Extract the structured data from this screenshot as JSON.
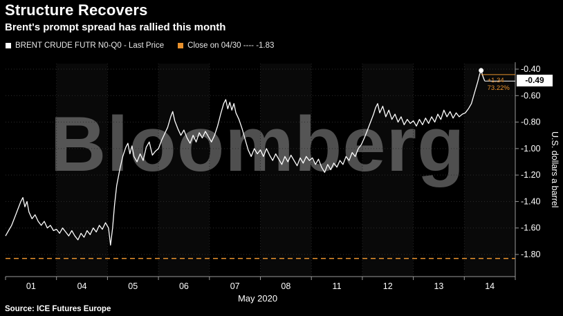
{
  "header": {
    "title": "Structure Recovers",
    "subtitle": "Brent's prompt spread has rallied this month"
  },
  "legend": [
    {
      "label": "BRENT CRUDE FUTR N0-Q0 - Last Price",
      "color": "#ffffff"
    },
    {
      "label": "Close on 04/30 ---- -1.83",
      "color": "#e8912d"
    }
  ],
  "watermark": "Bloomberg",
  "source": "Source: ICE Futures Europe",
  "chart_data": {
    "type": "line",
    "title": "Structure Recovers",
    "subtitle": "Brent's prompt spread has rallied this month",
    "xlabel": "May 2020",
    "ylabel": "U.S. dollars a barrel",
    "x_tick_labels": [
      "01",
      "04",
      "05",
      "06",
      "07",
      "08",
      "11",
      "12",
      "13",
      "14"
    ],
    "y_tick_labels": [
      "-0.40",
      "-0.60",
      "-0.80",
      "-1.00",
      "-1.20",
      "-1.40",
      "-1.60",
      "-1.80"
    ],
    "y_ticks": [
      -0.4,
      -0.6,
      -0.8,
      -1.0,
      -1.2,
      -1.4,
      -1.6,
      -1.8
    ],
    "ylim": [
      -1.92,
      -0.33
    ],
    "grid": "dotted",
    "legend_position": "top-left",
    "last_price_label": "-0.49",
    "last_price": -0.49,
    "net_change": "+1.34",
    "pct_change": "73.22%",
    "end_marker": {
      "t": 9.33,
      "value": -0.41
    },
    "series": [
      {
        "name": "BRENT CRUDE FUTR N0-Q0 - Last Price",
        "color": "#ffffff",
        "style": "solid",
        "points": [
          [
            0.0,
            -1.66
          ],
          [
            0.06,
            -1.62
          ],
          [
            0.12,
            -1.58
          ],
          [
            0.18,
            -1.52
          ],
          [
            0.24,
            -1.46
          ],
          [
            0.3,
            -1.4
          ],
          [
            0.34,
            -1.37
          ],
          [
            0.38,
            -1.44
          ],
          [
            0.42,
            -1.4
          ],
          [
            0.46,
            -1.48
          ],
          [
            0.52,
            -1.53
          ],
          [
            0.58,
            -1.5
          ],
          [
            0.64,
            -1.55
          ],
          [
            0.7,
            -1.58
          ],
          [
            0.76,
            -1.55
          ],
          [
            0.82,
            -1.6
          ],
          [
            0.88,
            -1.58
          ],
          [
            0.94,
            -1.62
          ],
          [
            1.0,
            -1.61
          ],
          [
            1.06,
            -1.64
          ],
          [
            1.12,
            -1.6
          ],
          [
            1.18,
            -1.63
          ],
          [
            1.24,
            -1.66
          ],
          [
            1.3,
            -1.62
          ],
          [
            1.36,
            -1.66
          ],
          [
            1.42,
            -1.69
          ],
          [
            1.48,
            -1.64
          ],
          [
            1.54,
            -1.67
          ],
          [
            1.6,
            -1.62
          ],
          [
            1.66,
            -1.65
          ],
          [
            1.72,
            -1.6
          ],
          [
            1.78,
            -1.63
          ],
          [
            1.84,
            -1.58
          ],
          [
            1.9,
            -1.61
          ],
          [
            1.96,
            -1.56
          ],
          [
            2.02,
            -1.6
          ],
          [
            2.06,
            -1.73
          ],
          [
            2.1,
            -1.6
          ],
          [
            2.14,
            -1.42
          ],
          [
            2.18,
            -1.28
          ],
          [
            2.24,
            -1.16
          ],
          [
            2.3,
            -1.06
          ],
          [
            2.36,
            -0.99
          ],
          [
            2.4,
            -0.96
          ],
          [
            2.44,
            -1.04
          ],
          [
            2.48,
            -0.98
          ],
          [
            2.52,
            -1.06
          ],
          [
            2.58,
            -1.1
          ],
          [
            2.64,
            -1.04
          ],
          [
            2.7,
            -1.09
          ],
          [
            2.76,
            -0.99
          ],
          [
            2.82,
            -0.95
          ],
          [
            2.88,
            -1.05
          ],
          [
            2.94,
            -1.02
          ],
          [
            3.0,
            -1.0
          ],
          [
            3.06,
            -0.94
          ],
          [
            3.12,
            -0.89
          ],
          [
            3.18,
            -0.84
          ],
          [
            3.24,
            -0.76
          ],
          [
            3.28,
            -0.72
          ],
          [
            3.32,
            -0.79
          ],
          [
            3.38,
            -0.85
          ],
          [
            3.44,
            -0.9
          ],
          [
            3.5,
            -0.86
          ],
          [
            3.56,
            -0.92
          ],
          [
            3.62,
            -0.96
          ],
          [
            3.68,
            -0.9
          ],
          [
            3.74,
            -0.95
          ],
          [
            3.8,
            -0.88
          ],
          [
            3.86,
            -0.92
          ],
          [
            3.92,
            -0.87
          ],
          [
            3.98,
            -0.91
          ],
          [
            4.04,
            -0.95
          ],
          [
            4.1,
            -0.9
          ],
          [
            4.16,
            -0.83
          ],
          [
            4.22,
            -0.74
          ],
          [
            4.28,
            -0.66
          ],
          [
            4.32,
            -0.63
          ],
          [
            4.36,
            -0.7
          ],
          [
            4.4,
            -0.65
          ],
          [
            4.44,
            -0.71
          ],
          [
            4.48,
            -0.66
          ],
          [
            4.52,
            -0.73
          ],
          [
            4.58,
            -0.78
          ],
          [
            4.64,
            -0.85
          ],
          [
            4.7,
            -0.93
          ],
          [
            4.76,
            -1.01
          ],
          [
            4.82,
            -1.06
          ],
          [
            4.88,
            -1.0
          ],
          [
            4.94,
            -1.04
          ],
          [
            5.0,
            -1.01
          ],
          [
            5.06,
            -1.06
          ],
          [
            5.12,
            -1.0
          ],
          [
            5.18,
            -1.05
          ],
          [
            5.24,
            -1.09
          ],
          [
            5.3,
            -1.04
          ],
          [
            5.36,
            -1.08
          ],
          [
            5.42,
            -1.12
          ],
          [
            5.48,
            -1.06
          ],
          [
            5.54,
            -1.1
          ],
          [
            5.6,
            -1.05
          ],
          [
            5.66,
            -1.09
          ],
          [
            5.72,
            -1.13
          ],
          [
            5.78,
            -1.07
          ],
          [
            5.84,
            -1.11
          ],
          [
            5.9,
            -1.06
          ],
          [
            5.96,
            -1.09
          ],
          [
            6.02,
            -1.07
          ],
          [
            6.08,
            -1.12
          ],
          [
            6.14,
            -1.08
          ],
          [
            6.2,
            -1.14
          ],
          [
            6.26,
            -1.18
          ],
          [
            6.32,
            -1.12
          ],
          [
            6.38,
            -1.16
          ],
          [
            6.44,
            -1.11
          ],
          [
            6.5,
            -1.14
          ],
          [
            6.56,
            -1.09
          ],
          [
            6.62,
            -1.12
          ],
          [
            6.68,
            -1.06
          ],
          [
            6.74,
            -1.09
          ],
          [
            6.8,
            -1.03
          ],
          [
            6.86,
            -1.06
          ],
          [
            6.92,
            -1.0
          ],
          [
            6.98,
            -0.97
          ],
          [
            7.04,
            -0.92
          ],
          [
            7.1,
            -0.86
          ],
          [
            7.16,
            -0.8
          ],
          [
            7.22,
            -0.74
          ],
          [
            7.26,
            -0.69
          ],
          [
            7.3,
            -0.66
          ],
          [
            7.34,
            -0.73
          ],
          [
            7.4,
            -0.68
          ],
          [
            7.46,
            -0.76
          ],
          [
            7.52,
            -0.71
          ],
          [
            7.58,
            -0.78
          ],
          [
            7.64,
            -0.74
          ],
          [
            7.7,
            -0.8
          ],
          [
            7.76,
            -0.76
          ],
          [
            7.82,
            -0.82
          ],
          [
            7.88,
            -0.78
          ],
          [
            7.94,
            -0.81
          ],
          [
            8.0,
            -0.79
          ],
          [
            8.06,
            -0.83
          ],
          [
            8.12,
            -0.78
          ],
          [
            8.18,
            -0.82
          ],
          [
            8.24,
            -0.77
          ],
          [
            8.3,
            -0.81
          ],
          [
            8.36,
            -0.76
          ],
          [
            8.42,
            -0.8
          ],
          [
            8.48,
            -0.74
          ],
          [
            8.54,
            -0.78
          ],
          [
            8.6,
            -0.71
          ],
          [
            8.66,
            -0.76
          ],
          [
            8.72,
            -0.72
          ],
          [
            8.78,
            -0.77
          ],
          [
            8.84,
            -0.73
          ],
          [
            8.9,
            -0.76
          ],
          [
            8.96,
            -0.74
          ],
          [
            9.02,
            -0.73
          ],
          [
            9.08,
            -0.7
          ],
          [
            9.14,
            -0.66
          ],
          [
            9.2,
            -0.58
          ],
          [
            9.26,
            -0.5
          ],
          [
            9.3,
            -0.44
          ],
          [
            9.33,
            -0.41
          ],
          [
            9.37,
            -0.46
          ],
          [
            9.4,
            -0.49
          ]
        ]
      },
      {
        "name": "Close on 04/30",
        "color": "#e8912d",
        "style": "dashed",
        "value": -1.83
      }
    ]
  }
}
